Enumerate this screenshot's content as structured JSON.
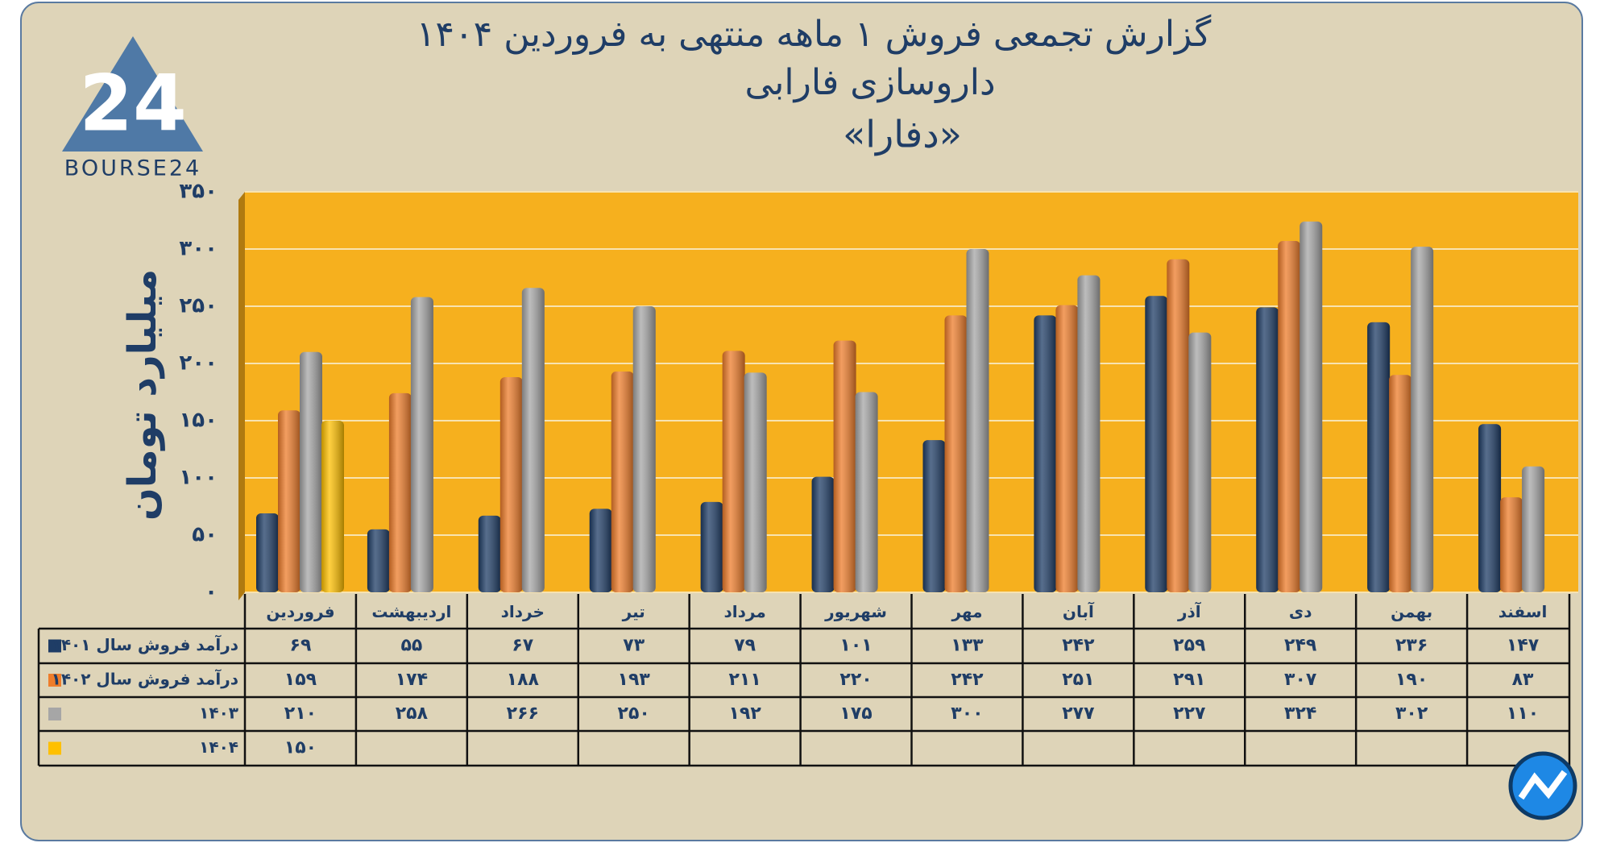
{
  "logo": {
    "mark": "24",
    "text": "BOURSE24"
  },
  "chart_data": {
    "type": "bar",
    "title": "گزارش تجمعی فروش ۱ ماهه منتهی به فروردین ۱۴۰۴",
    "subtitle": "داروسازی فارابی",
    "symbol": "«دفارا»",
    "y_label": "میلیارد تومان",
    "categories": [
      "فروردین",
      "اردیبهشت",
      "خرداد",
      "تیر",
      "مرداد",
      "شهریور",
      "مهر",
      "آبان",
      "آذر",
      "دی",
      "بهمن",
      "اسفند"
    ],
    "series": [
      {
        "name": "درآمد فروش سال ۱۴۰۱",
        "color": "#1f3d66",
        "values": [
          69,
          55,
          67,
          73,
          79,
          101,
          133,
          242,
          259,
          249,
          236,
          147
        ],
        "value_labels": [
          "۶۹",
          "۵۵",
          "۶۷",
          "۷۳",
          "۷۹",
          "۱۰۱",
          "۱۳۳",
          "۲۴۲",
          "۲۵۹",
          "۲۴۹",
          "۲۳۶",
          "۱۴۷"
        ]
      },
      {
        "name": "درآمد فروش سال ۱۴۰۲",
        "color": "#ee7d2b",
        "values": [
          159,
          174,
          188,
          193,
          211,
          220,
          242,
          251,
          291,
          307,
          190,
          83
        ],
        "value_labels": [
          "۱۵۹",
          "۱۷۴",
          "۱۸۸",
          "۱۹۳",
          "۲۱۱",
          "۲۲۰",
          "۲۴۲",
          "۲۵۱",
          "۲۹۱",
          "۳۰۷",
          "۱۹۰",
          "۸۳"
        ]
      },
      {
        "name": "۱۴۰۳",
        "color": "#a6a6a6",
        "values": [
          210,
          258,
          266,
          250,
          192,
          175,
          300,
          277,
          227,
          324,
          302,
          110
        ],
        "value_labels": [
          "۲۱۰",
          "۲۵۸",
          "۲۶۶",
          "۲۵۰",
          "۱۹۲",
          "۱۷۵",
          "۳۰۰",
          "۲۷۷",
          "۲۲۷",
          "۳۲۴",
          "۳۰۲",
          "۱۱۰"
        ]
      },
      {
        "name": "۱۴۰۴",
        "color": "#ffc000",
        "values": [
          150,
          null,
          null,
          null,
          null,
          null,
          null,
          null,
          null,
          null,
          null,
          null
        ],
        "value_labels": [
          "۱۵۰",
          null,
          null,
          null,
          null,
          null,
          null,
          null,
          null,
          null,
          null,
          null
        ]
      }
    ],
    "ylim": [
      0,
      350
    ],
    "yticks": [
      {
        "value": 0,
        "label": "۰"
      },
      {
        "value": 50,
        "label": "۵۰"
      },
      {
        "value": 100,
        "label": "۱۰۰"
      },
      {
        "value": 150,
        "label": "۱۵۰"
      },
      {
        "value": 200,
        "label": "۲۰۰"
      },
      {
        "value": 250,
        "label": "۲۵۰"
      },
      {
        "value": 300,
        "label": "۳۰۰"
      },
      {
        "value": 350,
        "label": "۳۵۰"
      }
    ],
    "grid": true
  }
}
